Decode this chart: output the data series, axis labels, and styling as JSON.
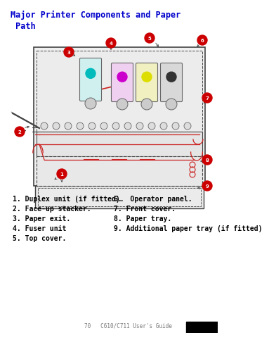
{
  "title_line1": "Major Printer Components and Paper",
  "title_line2": " Path",
  "title_color": "#0000CC",
  "bg_color": "#ffffff",
  "legend_items_left": [
    "1. Duplex unit (if fitted).",
    "2. Face-up stacker.",
    "3. Paper exit.",
    "4. Fuser unit",
    "5. Top cover."
  ],
  "legend_items_right": [
    "6.  Operator panel.",
    "7. Front cover.",
    "8. Paper tray.",
    "9. Additional paper tray (if fitted)"
  ],
  "label_color": "#CC0000",
  "label_text_color": "#ffffff",
  "cyan_color": "#00BBBB",
  "magenta_color": "#CC00CC",
  "yellow_color": "#DDDD00",
  "black_toner_color": "#555555",
  "paper_path_color": "#CC2222",
  "outline_color": "#444444",
  "printer_fill": "#f0f0f0",
  "tray_fill": "#e8e8e8",
  "dashed_fill": "#ececec"
}
